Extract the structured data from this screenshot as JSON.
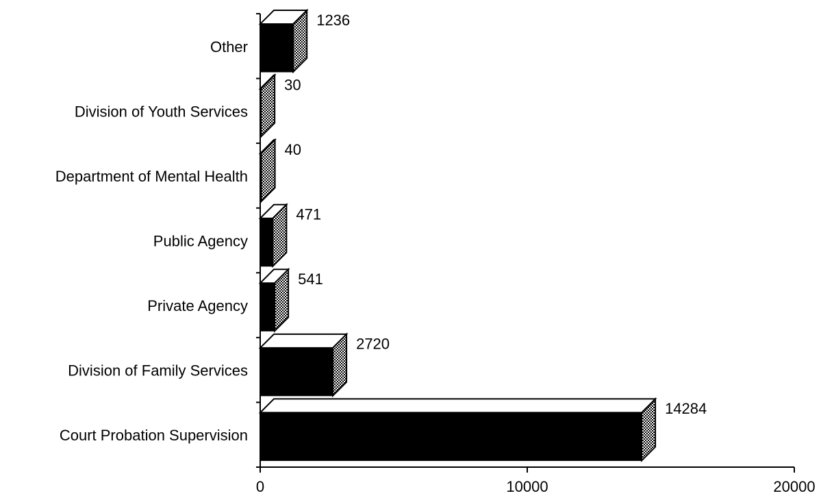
{
  "chart_data": {
    "type": "bar",
    "orientation": "horizontal",
    "categories": [
      "Other",
      "Division of Youth Services",
      "Department of Mental Health",
      "Public Agency",
      "Private Agency",
      "Division of Family Services",
      "Court Probation Supervision"
    ],
    "values": [
      1236,
      30,
      40,
      471,
      541,
      2720,
      14284
    ],
    "color": "#000000",
    "xlim": [
      0,
      20000
    ],
    "xticks": [
      0,
      10000,
      20000
    ]
  }
}
